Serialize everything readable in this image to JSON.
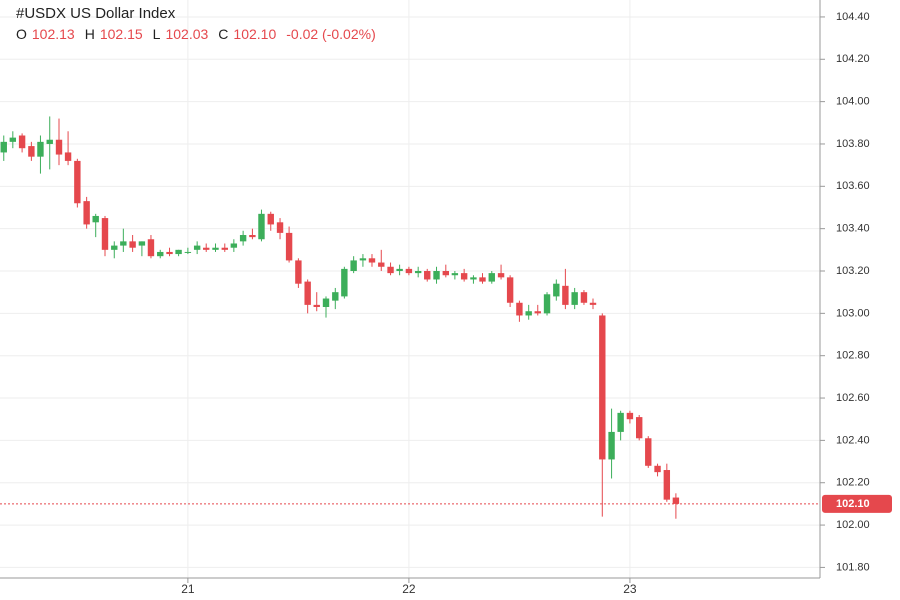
{
  "chart_data": {
    "type": "candlestick",
    "title": "#USDX US Dollar Index",
    "ohlc_legend": [
      {
        "key": "O",
        "value": "102.13"
      },
      {
        "key": "H",
        "value": "102.15"
      },
      {
        "key": "L",
        "value": "102.03"
      },
      {
        "key": "C",
        "value": "102.10"
      }
    ],
    "change": "-0.02 (-0.02%)",
    "up_color": "#3cae5a",
    "down_color": "#e5484d",
    "grid": true,
    "xlim": [
      20.15,
      23.86
    ],
    "xticks": [
      21,
      22,
      23
    ],
    "ylim": [
      101.75,
      104.48
    ],
    "yticks": [
      {
        "value": 101.8,
        "label": "101.80"
      },
      {
        "value": 102.0,
        "label": "102.00"
      },
      {
        "value": 102.2,
        "label": "102.20"
      },
      {
        "value": 102.4,
        "label": "102.40"
      },
      {
        "value": 102.6,
        "label": "102.60"
      },
      {
        "value": 102.8,
        "label": "102.80"
      },
      {
        "value": 103.0,
        "label": "103.00"
      },
      {
        "value": 103.2,
        "label": "103.20"
      },
      {
        "value": 103.4,
        "label": "103.40"
      },
      {
        "value": 103.6,
        "label": "103.60"
      },
      {
        "value": 103.8,
        "label": "103.80"
      },
      {
        "value": 104.0,
        "label": "104.00"
      },
      {
        "value": 104.2,
        "label": "104.20"
      },
      {
        "value": 104.4,
        "label": "104.40"
      }
    ],
    "last_price": {
      "value": 102.1,
      "label": "102.10"
    },
    "x": [
      20.167,
      20.208,
      20.25,
      20.292,
      20.333,
      20.375,
      20.417,
      20.458,
      20.5,
      20.542,
      20.583,
      20.625,
      20.667,
      20.708,
      20.75,
      20.792,
      20.833,
      20.875,
      20.917,
      20.958,
      21.0,
      21.042,
      21.083,
      21.125,
      21.167,
      21.208,
      21.25,
      21.292,
      21.333,
      21.375,
      21.417,
      21.458,
      21.5,
      21.542,
      21.583,
      21.625,
      21.667,
      21.708,
      21.75,
      21.792,
      21.833,
      21.875,
      21.917,
      21.958,
      22.0,
      22.042,
      22.083,
      22.125,
      22.167,
      22.208,
      22.25,
      22.292,
      22.333,
      22.375,
      22.417,
      22.458,
      22.5,
      22.542,
      22.583,
      22.625,
      22.667,
      22.708,
      22.75,
      22.792,
      22.833,
      22.875,
      22.917,
      22.958,
      23.0,
      23.042,
      23.083,
      23.125,
      23.167,
      23.208
    ],
    "open": [
      103.76,
      103.81,
      103.84,
      103.79,
      103.74,
      103.8,
      103.82,
      103.76,
      103.72,
      103.53,
      103.43,
      103.45,
      103.3,
      103.32,
      103.34,
      103.32,
      103.35,
      103.27,
      103.29,
      103.28,
      103.29,
      103.3,
      103.31,
      103.3,
      103.31,
      103.31,
      103.34,
      103.37,
      103.35,
      103.47,
      103.43,
      103.38,
      103.25,
      103.15,
      103.04,
      103.03,
      103.06,
      103.08,
      103.2,
      103.25,
      103.26,
      103.24,
      103.22,
      103.2,
      103.21,
      103.19,
      103.2,
      103.16,
      103.2,
      103.18,
      103.19,
      103.16,
      103.17,
      103.15,
      103.19,
      103.17,
      103.05,
      102.99,
      103.01,
      103.0,
      103.08,
      103.13,
      103.04,
      103.1,
      103.05,
      102.99,
      102.31,
      102.44,
      102.53,
      102.51,
      102.41,
      102.28,
      102.26,
      102.13
    ],
    "high": [
      103.84,
      103.86,
      103.85,
      103.81,
      103.84,
      103.93,
      103.92,
      103.86,
      103.73,
      103.55,
      103.47,
      103.46,
      103.34,
      103.4,
      103.37,
      103.34,
      103.37,
      103.3,
      103.31,
      103.3,
      103.31,
      103.34,
      103.33,
      103.33,
      103.33,
      103.35,
      103.39,
      103.4,
      103.49,
      103.48,
      103.45,
      103.41,
      103.26,
      103.16,
      103.1,
      103.08,
      103.12,
      103.22,
      103.27,
      103.28,
      103.28,
      103.3,
      103.24,
      103.23,
      103.22,
      103.22,
      103.21,
      103.22,
      103.23,
      103.2,
      103.21,
      103.18,
      103.19,
      103.2,
      103.23,
      103.18,
      103.06,
      103.04,
      103.04,
      103.1,
      103.16,
      103.21,
      103.12,
      103.11,
      103.07,
      103.0,
      102.55,
      102.54,
      102.54,
      102.52,
      102.42,
      102.29,
      102.29,
      102.15
    ],
    "low": [
      103.72,
      103.78,
      103.76,
      103.72,
      103.66,
      103.68,
      103.7,
      103.7,
      103.5,
      103.4,
      103.36,
      103.27,
      103.26,
      103.29,
      103.29,
      103.27,
      103.26,
      103.26,
      103.27,
      103.27,
      103.28,
      103.28,
      103.29,
      103.29,
      103.29,
      103.29,
      103.32,
      103.35,
      103.34,
      103.39,
      103.35,
      103.24,
      103.12,
      103.0,
      103.01,
      102.98,
      103.02,
      103.07,
      103.19,
      103.22,
      103.22,
      103.2,
      103.18,
      103.18,
      103.18,
      103.17,
      103.15,
      103.14,
      103.17,
      103.16,
      103.15,
      103.14,
      103.14,
      103.14,
      103.16,
      103.03,
      102.96,
      102.97,
      102.99,
      102.99,
      103.06,
      103.02,
      103.02,
      103.04,
      103.02,
      102.04,
      102.22,
      102.4,
      102.48,
      102.4,
      102.27,
      102.23,
      102.11,
      102.03
    ],
    "close": [
      103.81,
      103.83,
      103.78,
      103.74,
      103.81,
      103.82,
      103.75,
      103.72,
      103.52,
      103.42,
      103.46,
      103.3,
      103.32,
      103.34,
      103.31,
      103.34,
      103.27,
      103.29,
      103.28,
      103.3,
      103.29,
      103.32,
      103.3,
      103.31,
      103.3,
      103.33,
      103.37,
      103.36,
      103.47,
      103.42,
      103.38,
      103.25,
      103.14,
      103.04,
      103.03,
      103.07,
      103.1,
      103.21,
      103.25,
      103.26,
      103.24,
      103.22,
      103.19,
      103.21,
      103.19,
      103.2,
      103.16,
      103.2,
      103.18,
      103.19,
      103.16,
      103.17,
      103.15,
      103.19,
      103.17,
      103.05,
      102.99,
      103.01,
      103.0,
      103.09,
      103.14,
      103.04,
      103.1,
      103.05,
      103.04,
      102.31,
      102.44,
      102.53,
      102.5,
      102.41,
      102.28,
      102.25,
      102.12,
      102.1
    ]
  }
}
